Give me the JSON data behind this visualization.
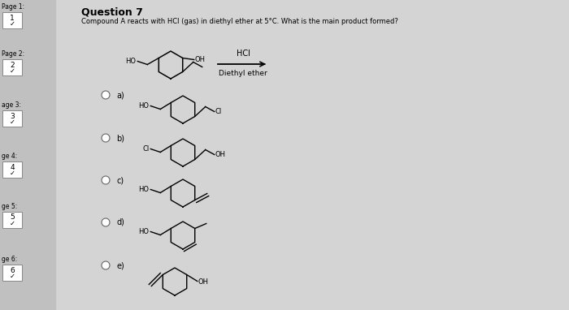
{
  "bg_color": "#d4d4d4",
  "sidebar_color": "#c0c0c0",
  "title": "Question 7",
  "question": "Compound A reacts with HCl (gas) in diethyl ether at 5°C. What is the main product formed?",
  "reagent_top": "HCl",
  "reagent_bottom": "Diethyl ether",
  "page_labels": [
    "Page 1:",
    "Page 2:",
    "age 3:",
    "ge 4:",
    "ge 5:",
    "ge 6:"
  ],
  "page_numbers": [
    "1",
    "2",
    "3",
    "4",
    "5",
    "6"
  ],
  "options": [
    "a)",
    "b)",
    "c)",
    "d)",
    "e)"
  ]
}
